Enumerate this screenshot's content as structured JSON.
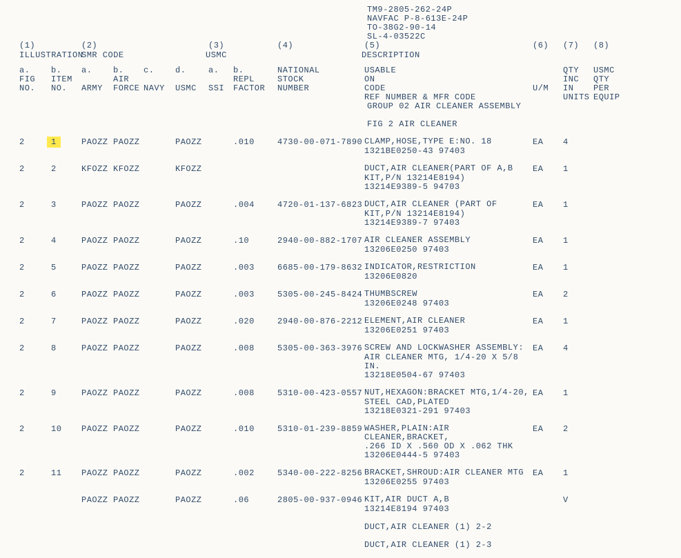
{
  "doc_ids": [
    "TM9-2805-262-24P",
    "NAVFAC P-8-613E-24P",
    "TO-38G2-90-14",
    "SL-4-03522C"
  ],
  "top_nums": {
    "c1": "(1)",
    "c2": "(2)",
    "c3": "(3)",
    "c4": "(4)",
    "c5": "(5)",
    "c6": "(6)",
    "c7": "(7)",
    "c8": "(8)"
  },
  "top_labels": {
    "illus": "ILLUSTRATION",
    "smr": "SMR CODE",
    "usmc": "USMC",
    "desc": "DESCRIPTION"
  },
  "sub_a": {
    "fig_a": "a.",
    "item_b": "b.",
    "army_a": "a.",
    "air_b": "b.",
    "navy_c": "c.",
    "usmc_d": "d.",
    "ssi_a": "a.",
    "repl_b": "b.",
    "nsn": "NATIONAL",
    "usable": "USABLE",
    "qty": "QTY",
    "usmcqty": "USMC"
  },
  "sub_b": {
    "fig": "FIG",
    "item": "ITEM",
    "air": "AIR",
    "repl": "REPL",
    "nsn": "STOCK",
    "on": "ON",
    "inc": "INC",
    "qty": "QTY"
  },
  "sub_c": {
    "no1": "NO.",
    "no2": "NO.",
    "army": "ARMY",
    "force": "FORCE",
    "navy": "NAVY",
    "usmc": "USMC",
    "ssi": "SSI",
    "factor": "FACTOR",
    "number": "NUMBER",
    "code": "CODE",
    "ref": "REF NUMBER & MFR CODE",
    "um": "U/M",
    "in": "IN",
    "units": "UNITS",
    "per": "PER",
    "equip": "EQUIP"
  },
  "group_lines": [
    "GROUP 02 AIR CLEANER ASSEMBLY",
    "",
    "FIG 2 AIR CLEANER"
  ],
  "rows": [
    {
      "fig": "2",
      "item": "1",
      "hl": true,
      "army": "PAOZZ",
      "air": "PAOZZ",
      "usmc": "PAOZZ",
      "repl": ".010",
      "nsn": "4730-00-071-7890",
      "um": "EA",
      "qty": "4",
      "desc": [
        "CLAMP,HOSE,TYPE E:NO. 18",
        "1321BE0250-43  97403"
      ]
    },
    {
      "fig": "2",
      "item": "2",
      "army": "KFOZZ",
      "air": "KFOZZ",
      "usmc": "KFOZZ",
      "repl": "",
      "nsn": "",
      "um": "EA",
      "qty": "1",
      "desc": [
        "DUCT,AIR CLEANER(PART OF  A,B",
        "KIT,P/N 13214E8194)",
        "13214E9389-5  94703"
      ]
    },
    {
      "fig": "2",
      "item": "3",
      "army": "PAOZZ",
      "air": "PAOZZ",
      "usmc": "PAOZZ",
      "repl": ".004",
      "nsn": "4720-01-137-6823",
      "um": "EA",
      "qty": "1",
      "desc": [
        "DUCT,AIR CLEANER (PART OF",
        "KIT,P/N 13214E8194)",
        "13214E9389-7  97403"
      ]
    },
    {
      "fig": "2",
      "item": "4",
      "army": "PAOZZ",
      "air": "PAOZZ",
      "usmc": "PAOZZ",
      "repl": ".10",
      "nsn": "2940-00-882-1707",
      "um": "EA",
      "qty": "1",
      "desc": [
        "AIR CLEANER ASSEMBLY",
        "13206E0250  97403"
      ]
    },
    {
      "fig": "2",
      "item": "5",
      "army": "PAOZZ",
      "air": "PAOZZ",
      "usmc": "PAOZZ",
      "repl": ".003",
      "nsn": "6685-00-179-8632",
      "um": "EA",
      "qty": "1",
      "desc": [
        "INDICATOR,RESTRICTION",
        "13206E0820"
      ]
    },
    {
      "fig": "2",
      "item": "6",
      "army": "PAOZZ",
      "air": "PAOZZ",
      "usmc": "PAOZZ",
      "repl": ".003",
      "nsn": "5305-00-245-8424",
      "um": "EA",
      "qty": "2",
      "desc": [
        "THUMBSCREW",
        "13206E0248  97403"
      ]
    },
    {
      "fig": "2",
      "item": "7",
      "army": "PAOZZ",
      "air": "PAOZZ",
      "usmc": "PAOZZ",
      "repl": ".020",
      "nsn": "2940-00-876-2212",
      "um": "EA",
      "qty": "1",
      "desc": [
        "ELEMENT,AIR CLEANER",
        "13206E0251  97403"
      ]
    },
    {
      "fig": "2",
      "item": "8",
      "army": "PAOZZ",
      "air": "PAOZZ",
      "usmc": "PAOZZ",
      "repl": ".008",
      "nsn": "5305-00-363-3976",
      "um": "EA",
      "qty": "4",
      "desc": [
        "SCREW AND LOCKWASHER ASSEMBLY:",
        "AIR CLEANER MTG, 1/4-20 X 5/8 IN.",
        "13218E0504-67  97403"
      ]
    },
    {
      "fig": "2",
      "item": "9",
      "army": "PAOZZ",
      "air": "PAOZZ",
      "usmc": "PAOZZ",
      "repl": ".008",
      "nsn": "5310-00-423-0557",
      "um": "EA",
      "qty": "1",
      "desc": [
        "NUT,HEXAGON:BRACKET MTG,1/4-20,",
        "STEEL CAD,PLATED",
        "13218E0321-291  97403"
      ]
    },
    {
      "fig": "2",
      "item": "10",
      "army": "PAOZZ",
      "air": "PAOZZ",
      "usmc": "PAOZZ",
      "repl": ".010",
      "nsn": "5310-01-239-8859",
      "um": "EA",
      "qty": "2",
      "desc": [
        "WASHER,PLAIN:AIR CLEANER,BRACKET,",
        ".266 ID X .560 OD X .062 THK",
        "13206E0444-5  97403"
      ]
    },
    {
      "fig": "2",
      "item": "11",
      "army": "PAOZZ",
      "air": "PAOZZ",
      "usmc": "PAOZZ",
      "repl": ".002",
      "nsn": "5340-00-222-8256",
      "um": "EA",
      "qty": "1",
      "desc": [
        "BRACKET,SHROUD:AIR CLEANER MTG",
        "13206E0255  97403"
      ]
    },
    {
      "fig": "",
      "item": "",
      "army": "PAOZZ",
      "air": "PAOZZ",
      "usmc": "PAOZZ",
      "repl": ".06",
      "nsn": "2805-00-937-0946",
      "um": "",
      "qty": "V",
      "desc": [
        "KIT,AIR DUCT  A,B",
        "13214E8194  97403",
        "",
        "DUCT,AIR CLEANER  (1)  2-2",
        "",
        "DUCT,AIR CLEANER  (1)  2-3"
      ]
    }
  ]
}
